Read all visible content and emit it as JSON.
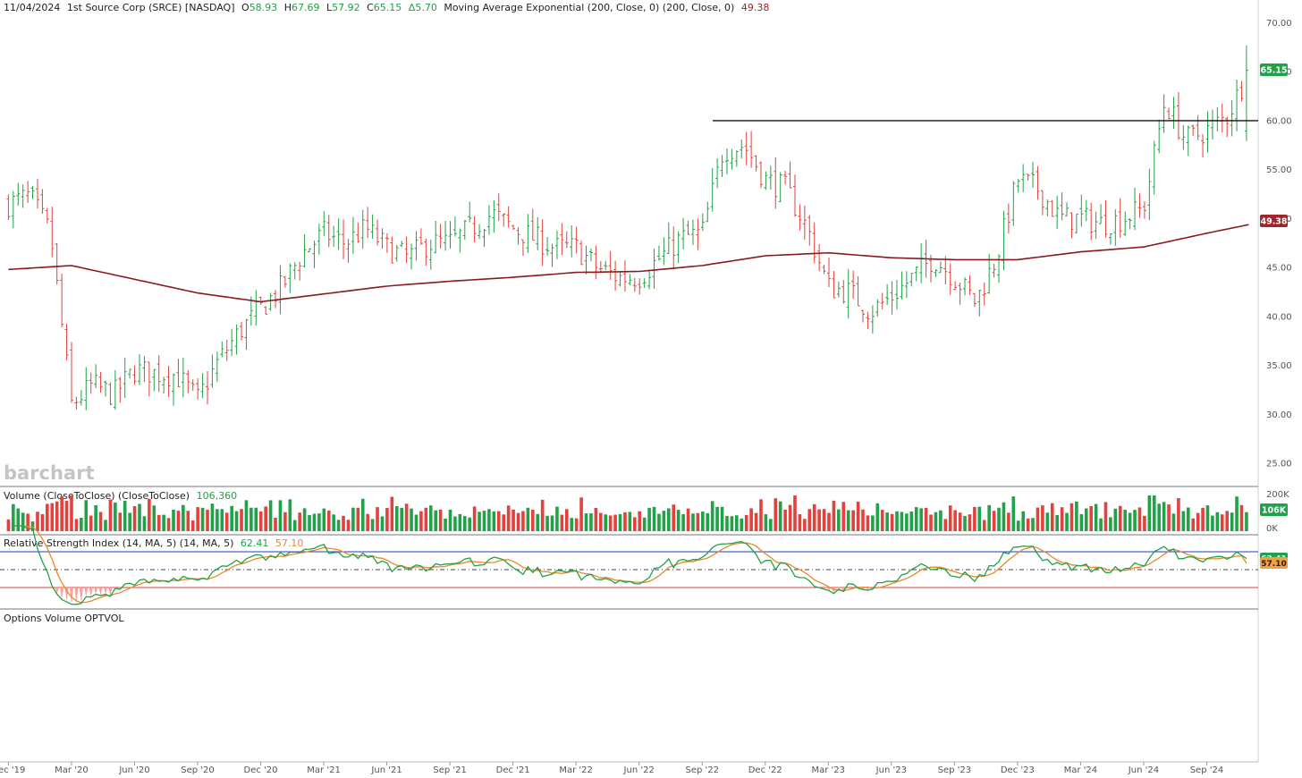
{
  "header": {
    "date": "11/04/2024",
    "name": "1st Source Corp (SRCE) [NASDAQ]",
    "o_label": "O",
    "o_value": "58.93",
    "h_label": "H",
    "h_value": "67.69",
    "l_label": "L",
    "l_value": "57.92",
    "c_label": "C",
    "c_value": "65.15",
    "change": "Δ5.70",
    "ma_label": "Moving Average Exponential (200, Close, 0)  (200, Close, 0)",
    "ma_value": "49.38"
  },
  "watermark": "barchart",
  "volume_panel": {
    "title": "Volume (CloseToClose)  (CloseToClose)",
    "value": "106,360",
    "last_badge": "106K",
    "axis_labels": [
      "200K",
      "0K"
    ]
  },
  "rsi_panel": {
    "title": "Relative Strength Index (14, MA, 5)  (14, MA, 5)",
    "rsi_value": "62.41",
    "ma_value": "57.10",
    "badge_rsi": "62.41",
    "badge_ma": "57.10"
  },
  "options_panel": {
    "title": "Options Volume  OPTVOL"
  },
  "price_badges": {
    "last": "65.15",
    "ema": "49.38"
  },
  "colors": {
    "up": "#21a148",
    "down": "#e2413c",
    "ema": "#8b1a1f",
    "rsi": "#21a148",
    "rsi_ma": "#e8892a",
    "overbought": "#1f3bc9",
    "oversold": "#e2413c"
  },
  "chart_data": {
    "type": "line",
    "symbol": "SRCE",
    "y_axis": {
      "range": [
        23.0,
        70.5
      ],
      "ticks": [
        "70.00",
        "65.00",
        "60.00",
        "55.00",
        "50.00",
        "45.00",
        "40.00",
        "35.00",
        "30.00",
        "25.00"
      ]
    },
    "x_axis_ticks": [
      "Dec '19",
      "Mar '20",
      "Jun '20",
      "Sep '20",
      "Dec '20",
      "Mar '21",
      "Jun '21",
      "Sep '21",
      "Dec '21",
      "Mar '22",
      "Jun '22",
      "Sep '22",
      "Dec '22",
      "Mar '23",
      "Jun '23",
      "Sep '23",
      "Dec '23",
      "Mar '24",
      "Jun '24",
      "Sep '24"
    ],
    "weekly_close": {
      "x": [
        "2019-12",
        "2020-01",
        "2020-02",
        "2020-03",
        "2020-04",
        "2020-05",
        "2020-06",
        "2020-07",
        "2020-08",
        "2020-09",
        "2020-10",
        "2020-11",
        "2020-12",
        "2021-01",
        "2021-02",
        "2021-03",
        "2021-04",
        "2021-05",
        "2021-06",
        "2021-07",
        "2021-08",
        "2021-09",
        "2021-10",
        "2021-11",
        "2021-12",
        "2022-01",
        "2022-02",
        "2022-03",
        "2022-04",
        "2022-05",
        "2022-06",
        "2022-07",
        "2022-08",
        "2022-09",
        "2022-10",
        "2022-11",
        "2022-12",
        "2023-01",
        "2023-02",
        "2023-03",
        "2023-04",
        "2023-05",
        "2023-06",
        "2023-07",
        "2023-08",
        "2023-09",
        "2023-10",
        "2023-11",
        "2023-12",
        "2024-01",
        "2024-02",
        "2024-03",
        "2024-04",
        "2024-05",
        "2024-06",
        "2024-07",
        "2024-08",
        "2024-09",
        "2024-10",
        "2024-11"
      ],
      "values": [
        51.5,
        52.3,
        48.5,
        31.0,
        33.0,
        32.0,
        34.5,
        34.2,
        34.0,
        31.5,
        35.5,
        38.5,
        40.8,
        43.0,
        46.5,
        48.5,
        47.5,
        49.0,
        47.0,
        46.0,
        47.5,
        47.5,
        49.0,
        50.5,
        49.0,
        48.0,
        47.0,
        47.0,
        45.0,
        44.0,
        44.0,
        46.0,
        48.0,
        48.5,
        57.0,
        57.5,
        54.0,
        53.0,
        49.0,
        43.0,
        42.5,
        40.5,
        42.0,
        44.0,
        46.0,
        44.0,
        41.5,
        46.0,
        54.0,
        53.0,
        50.0,
        50.0,
        49.5,
        50.0,
        51.0,
        62.0,
        58.0,
        59.0,
        60.5,
        65.15
      ]
    },
    "ema200": {
      "x": [
        "2019-12",
        "2020-03",
        "2020-06",
        "2020-09",
        "2020-12",
        "2021-03",
        "2021-06",
        "2021-09",
        "2021-12",
        "2022-03",
        "2022-06",
        "2022-09",
        "2022-12",
        "2023-03",
        "2023-06",
        "2023-09",
        "2023-12",
        "2024-03",
        "2024-06",
        "2024-09",
        "2024-11"
      ],
      "values": [
        44.8,
        45.2,
        43.8,
        42.4,
        41.5,
        42.3,
        43.1,
        43.6,
        44.0,
        44.5,
        44.6,
        45.2,
        46.2,
        46.5,
        46.0,
        45.8,
        45.8,
        46.6,
        47.1,
        48.5,
        49.38
      ]
    },
    "resistance_level": 60.0,
    "last": {
      "open": 58.93,
      "high": 67.69,
      "low": 57.92,
      "close": 65.15,
      "change": 5.7,
      "ema200": 49.38
    },
    "volume_last": 106360,
    "rsi_last": 62.41,
    "rsi_ma_last": 57.1,
    "grid": false
  }
}
